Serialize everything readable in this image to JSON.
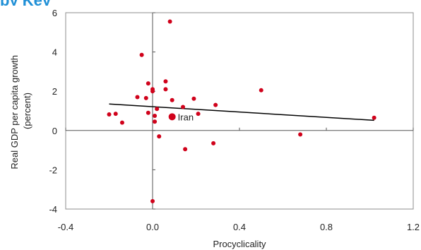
{
  "title_fragment": "by Key",
  "chart_data": {
    "type": "scatter",
    "xlabel": "Procyclicality",
    "ylabel_lines": [
      "Real GDP per capita growth",
      "(percent)"
    ],
    "xlim": [
      -0.4,
      1.2
    ],
    "ylim": [
      -4,
      6
    ],
    "xticks": [
      "-0.4",
      "0.0",
      "0.4",
      "0.8",
      "1.2"
    ],
    "xtick_values": [
      -0.4,
      0.0,
      0.4,
      0.8,
      1.2
    ],
    "yticks": [
      "6",
      "4",
      "2",
      "0",
      "-2",
      "-4"
    ],
    "ytick_values": [
      6,
      4,
      2,
      0,
      -2,
      -4
    ],
    "grid": false,
    "point_color": "#d0021b",
    "points": [
      {
        "x": 0.08,
        "y": 5.55
      },
      {
        "x": -0.05,
        "y": 3.85
      },
      {
        "x": 0.06,
        "y": 2.5
      },
      {
        "x": -0.02,
        "y": 2.4
      },
      {
        "x": 0.06,
        "y": 2.1
      },
      {
        "x": 0.0,
        "y": 2.1
      },
      {
        "x": 0.0,
        "y": 2.0
      },
      {
        "x": 0.5,
        "y": 2.05
      },
      {
        "x": -0.07,
        "y": 1.7
      },
      {
        "x": -0.03,
        "y": 1.65
      },
      {
        "x": 0.19,
        "y": 1.62
      },
      {
        "x": 0.09,
        "y": 1.55
      },
      {
        "x": 0.29,
        "y": 1.3
      },
      {
        "x": 0.14,
        "y": 1.2
      },
      {
        "x": 0.02,
        "y": 1.1
      },
      {
        "x": -0.02,
        "y": 0.9
      },
      {
        "x": 0.21,
        "y": 0.85
      },
      {
        "x": -0.2,
        "y": 0.82
      },
      {
        "x": -0.17,
        "y": 0.85
      },
      {
        "x": 0.01,
        "y": 0.75
      },
      {
        "x": 1.02,
        "y": 0.65
      },
      {
        "x": 0.01,
        "y": 0.45
      },
      {
        "x": -0.14,
        "y": 0.4
      },
      {
        "x": 0.68,
        "y": -0.2
      },
      {
        "x": 0.03,
        "y": -0.3
      },
      {
        "x": 0.28,
        "y": -0.65
      },
      {
        "x": 0.15,
        "y": -0.95
      },
      {
        "x": 0.0,
        "y": -3.6
      }
    ],
    "highlight": {
      "x": 0.09,
      "y": 0.7,
      "label": "Iran"
    },
    "trendline": {
      "x": [
        -0.2,
        1.02
      ],
      "y": [
        1.35,
        0.52
      ],
      "color": "#000000"
    }
  }
}
